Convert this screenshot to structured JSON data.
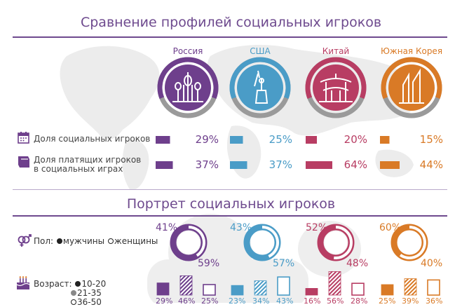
{
  "titles": {
    "main": "Сравнение профилей социальных игроков",
    "portrait": "Портрет социальных игроков"
  },
  "countries": [
    {
      "name": "Россия",
      "color": "#6e3f8c"
    },
    {
      "name": "США",
      "color": "#4a9cc7"
    },
    {
      "name": "Китай",
      "color": "#b83d63"
    },
    {
      "name": "Южная Корея",
      "color": "#d97a26"
    }
  ],
  "metrics": [
    {
      "label_line1": "Доля социальных игроков",
      "label_line2": ""
    },
    {
      "label_line1": "Доля платящих игроков",
      "label_line2": "в социальных играх"
    }
  ],
  "gender": {
    "label_prefix": "Пол:",
    "male": "мужчины",
    "female": "женщины"
  },
  "age": {
    "label_prefix": "Возраст:",
    "groups": [
      "10-20",
      "21-35",
      "36-50"
    ]
  },
  "chart_data": [
    {
      "type": "bar",
      "title": "Сравнение профилей социальных игроков",
      "categories": [
        "Россия",
        "США",
        "Китай",
        "Южная Корея"
      ],
      "series": [
        {
          "name": "Доля социальных игроков",
          "values": [
            29,
            25,
            20,
            15
          ],
          "labels": [
            "29%",
            "25%",
            "20%",
            "15%"
          ]
        },
        {
          "name": "Доля платящих игроков в социальных играх",
          "values": [
            37,
            37,
            64,
            44
          ],
          "labels": [
            "37%",
            "37%",
            "64%",
            "44%"
          ]
        }
      ]
    },
    {
      "type": "pie",
      "title": "Пол",
      "categories": [
        "Россия",
        "США",
        "Китай",
        "Южная Корея"
      ],
      "series": [
        {
          "name": "мужчины",
          "values": [
            41,
            43,
            52,
            60
          ],
          "labels": [
            "41%",
            "43%",
            "52%",
            "60%"
          ]
        },
        {
          "name": "женщины",
          "values": [
            59,
            57,
            48,
            40
          ],
          "labels": [
            "59%",
            "57%",
            "48%",
            "40%"
          ]
        }
      ]
    },
    {
      "type": "bar",
      "title": "Возраст",
      "categories": [
        "Россия",
        "США",
        "Китай",
        "Южная Корея"
      ],
      "series": [
        {
          "name": "10-20",
          "values": [
            29,
            23,
            16,
            25
          ],
          "labels": [
            "29%",
            "23%",
            "16%",
            "25%"
          ]
        },
        {
          "name": "21-35",
          "values": [
            46,
            34,
            56,
            39
          ],
          "labels": [
            "46%",
            "34%",
            "56%",
            "39%"
          ]
        },
        {
          "name": "36-50",
          "values": [
            25,
            43,
            28,
            36
          ],
          "labels": [
            "25%",
            "43%",
            "28%",
            "36%"
          ]
        }
      ]
    }
  ]
}
